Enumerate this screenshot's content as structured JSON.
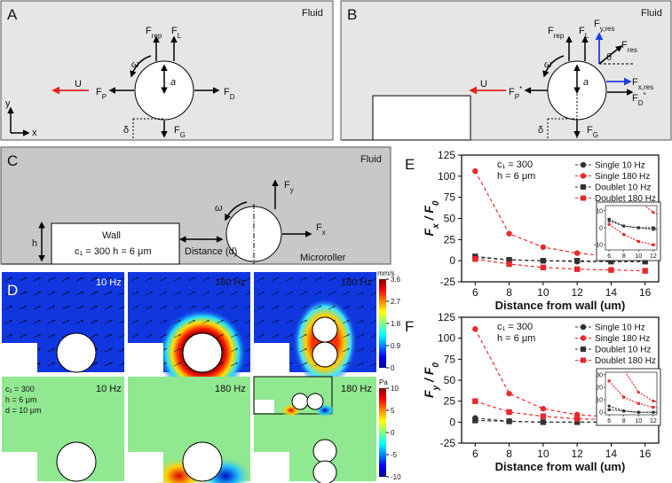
{
  "panel_a": {
    "letter": "A",
    "fluid": "Fluid",
    "f_rep": [
      "F",
      "rep"
    ],
    "f_l": [
      "F",
      "L"
    ],
    "omega": "ω",
    "a": "a",
    "u": "U",
    "f_p": [
      "F",
      "P"
    ],
    "f_d": [
      "F",
      "D"
    ],
    "f_g": [
      "F",
      "G"
    ],
    "delta": "δ",
    "y": "y",
    "x": "x"
  },
  "panel_b": {
    "letter": "B",
    "fluid": "Fluid",
    "f_rep": [
      "F",
      "rep"
    ],
    "f_l": [
      "F",
      "L"
    ],
    "f_yres": [
      "F",
      "y,res"
    ],
    "f_res": [
      "F",
      "res"
    ],
    "theta": "θ",
    "f_xres": [
      "F",
      "x,res"
    ],
    "f_d": [
      "F",
      "D",
      "*"
    ],
    "omega": "ω",
    "a": "a",
    "u": "U",
    "f_p": [
      "F",
      "P",
      "*"
    ],
    "delta": "δ",
    "f_g": [
      "F",
      "G"
    ]
  },
  "panel_c": {
    "letter": "C",
    "fluid": "Fluid",
    "f_y": [
      "F",
      "y"
    ],
    "omega": "ω",
    "f_x": [
      "F",
      "x"
    ],
    "h": "h",
    "wall": "Wall",
    "params": "c₁ = 300  h = 6 μm",
    "distance": "Distance (d)",
    "microroller": "Microroller"
  },
  "panel_d": {
    "letter": "D",
    "labels": [
      "10 Hz",
      "180 Hz",
      "180 Hz",
      "10 Hz",
      "180 Hz",
      "180 Hz"
    ],
    "params": [
      "c₁ = 300",
      "h = 6 μm",
      "d = 10 μm"
    ],
    "colorbar1": {
      "unit": "mm/s",
      "ticks": [
        0,
        0.9,
        1.8,
        2.7,
        3.6
      ]
    },
    "colorbar2": {
      "unit": "Pa",
      "ticks": [
        -10,
        -5,
        0,
        5,
        10
      ]
    }
  },
  "chart_data": [
    {
      "type": "line",
      "letter": "E",
      "annotations": [
        "c₁ = 300",
        "h = 6 μm"
      ],
      "xlabel": "Distance from wall  (um)",
      "ylabel": [
        "F",
        "x",
        " / F",
        "0"
      ],
      "x": [
        6,
        8,
        10,
        12,
        14,
        16
      ],
      "xlim": [
        5.2,
        16.8
      ],
      "xticks": [
        6,
        8,
        10,
        12,
        14,
        16
      ],
      "ylim": [
        -25,
        125
      ],
      "yticks": [
        -25,
        0,
        25,
        50,
        75,
        100,
        125
      ],
      "legend": "upper right",
      "line_style": "dashed",
      "series": [
        {
          "name": "Single 10 Hz",
          "color": "#333333",
          "marker": "circle",
          "values": [
            4,
            1,
            0,
            -1,
            -1,
            -1
          ]
        },
        {
          "name": "Single 180 Hz",
          "color": "#e8282b",
          "marker": "circle",
          "values": [
            106,
            32,
            16,
            9,
            5,
            3
          ]
        },
        {
          "name": "Doublet 10 Hz",
          "color": "#333333",
          "marker": "square",
          "values": [
            5,
            1,
            0,
            0,
            -1,
            -1
          ]
        },
        {
          "name": "Doublet 180 Hz",
          "color": "#e8282b",
          "marker": "square",
          "values": [
            2,
            -4,
            -8,
            -10,
            -11,
            -12
          ]
        }
      ],
      "inset": {
        "xlim": [
          5.5,
          12.5
        ],
        "ylim": [
          -13,
          13
        ],
        "xticks": [
          6,
          8,
          10,
          12
        ],
        "yticks": [
          -10,
          0,
          10
        ]
      }
    },
    {
      "type": "line",
      "letter": "F",
      "annotations": [
        "c₁ = 300",
        "h = 6 μm"
      ],
      "xlabel": "Distance from wall  (um)",
      "ylabel": [
        "F",
        "y",
        " / F",
        "0"
      ],
      "x": [
        6,
        8,
        10,
        12,
        14,
        16
      ],
      "xlim": [
        5.2,
        16.8
      ],
      "xticks": [
        6,
        8,
        10,
        12,
        14,
        16
      ],
      "ylim": [
        -25,
        125
      ],
      "yticks": [
        -25,
        0,
        25,
        50,
        75,
        100,
        125
      ],
      "legend": "upper right",
      "line_style": "dashed",
      "series": [
        {
          "name": "Single 10 Hz",
          "color": "#333333",
          "marker": "circle",
          "values": [
            5,
            1,
            0,
            0,
            0,
            0
          ]
        },
        {
          "name": "Single 180 Hz",
          "color": "#e8282b",
          "marker": "circle",
          "values": [
            111,
            34,
            16,
            9,
            6,
            4
          ]
        },
        {
          "name": "Doublet 10 Hz",
          "color": "#333333",
          "marker": "square",
          "values": [
            2,
            1,
            0,
            0,
            0,
            0
          ]
        },
        {
          "name": "Doublet 180 Hz",
          "color": "#e8282b",
          "marker": "square",
          "values": [
            25,
            12,
            7,
            4,
            3,
            2
          ]
        }
      ],
      "inset": {
        "xlim": [
          5.5,
          12.5
        ],
        "ylim": [
          -2,
          32
        ],
        "xticks": [
          6,
          8,
          10,
          12
        ],
        "yticks": [
          0,
          10,
          20,
          30
        ]
      }
    }
  ]
}
